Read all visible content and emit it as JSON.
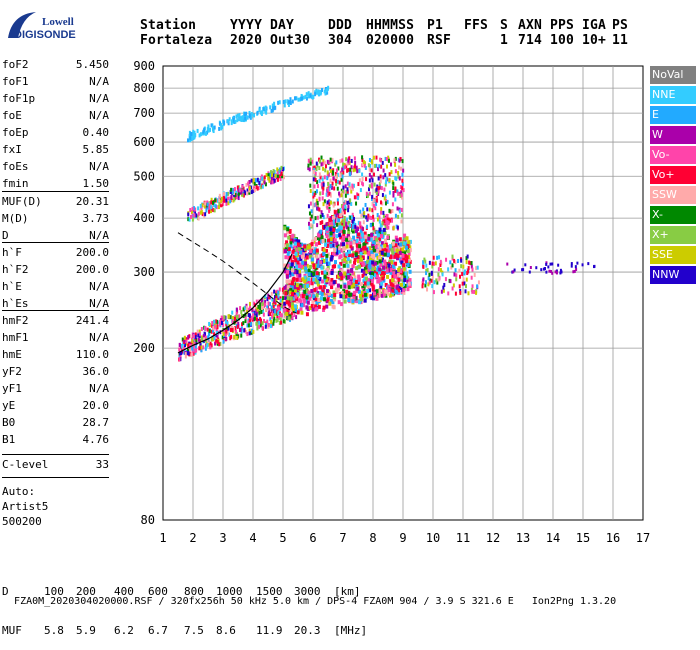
{
  "logo": {
    "line1": "Lowell",
    "line2": "DIGISONDE"
  },
  "header": {
    "labels": [
      "Station",
      "YYYY",
      "DAY",
      "DDD",
      "HHMMSS",
      "P1",
      "FFS",
      "S",
      "AXN",
      "PPS",
      "IGA",
      "PS"
    ],
    "values": [
      "Fortaleza",
      "2020",
      "Out30",
      "304",
      "020000",
      "RSF",
      "",
      "1",
      "714",
      "100",
      "10+",
      "11"
    ]
  },
  "params": [
    {
      "name": "foF2",
      "value": "5.450"
    },
    {
      "name": "foF1",
      "value": "N/A"
    },
    {
      "name": "foF1p",
      "value": "N/A"
    },
    {
      "name": "foE",
      "value": "N/A"
    },
    {
      "name": "foEp",
      "value": "0.40"
    },
    {
      "name": "fxI",
      "value": "5.85"
    },
    {
      "name": "foEs",
      "value": "N/A"
    },
    {
      "name": "fmin",
      "value": "1.50"
    },
    {
      "name": "MUF(D)",
      "value": "20.31"
    },
    {
      "name": "M(D)",
      "value": "3.73"
    },
    {
      "name": "D",
      "value": "N/A"
    },
    {
      "name": "h`F",
      "value": "200.0"
    },
    {
      "name": "h`F2",
      "value": "200.0"
    },
    {
      "name": "h`E",
      "value": "N/A"
    },
    {
      "name": "h`Es",
      "value": "N/A"
    },
    {
      "name": "hmF2",
      "value": "241.4"
    },
    {
      "name": "hmF1",
      "value": "N/A"
    },
    {
      "name": "hmE",
      "value": "110.0"
    },
    {
      "name": "yF2",
      "value": "36.0"
    },
    {
      "name": "yF1",
      "value": "N/A"
    },
    {
      "name": "yE",
      "value": "20.0"
    },
    {
      "name": "B0",
      "value": "28.7"
    },
    {
      "name": "B1",
      "value": "4.76"
    },
    {
      "name": "C-level",
      "value": "33"
    }
  ],
  "auto": {
    "line1": "Auto:",
    "line2": "Artist5",
    "line3": "500200"
  },
  "legend": [
    {
      "label": "NoVal",
      "color": "#808080"
    },
    {
      "label": "NNE",
      "color": "#33ccff"
    },
    {
      "label": "E",
      "color": "#22aaff"
    },
    {
      "label": "W",
      "color": "#aa00aa"
    },
    {
      "label": "Vo-",
      "color": "#ff44aa"
    },
    {
      "label": "Vo+",
      "color": "#ff0033"
    },
    {
      "label": "SSW",
      "color": "#ffaaaa"
    },
    {
      "label": "X-",
      "color": "#008800"
    },
    {
      "label": "X+",
      "color": "#88cc44"
    },
    {
      "label": "SSE",
      "color": "#cccc00"
    },
    {
      "label": "NNW",
      "color": "#2200cc"
    }
  ],
  "footer": {
    "d_label": "D",
    "d_values": [
      "100",
      "200",
      "400",
      "600",
      "800",
      "1000",
      "1500",
      "3000",
      "[km]"
    ],
    "muf_label": "MUF",
    "muf_values": [
      "5.8",
      "5.9",
      "6.2",
      "6.7",
      "7.5",
      "8.6",
      "11.9",
      "20.3",
      "[MHz]"
    ],
    "info": "FZA0M_2020304020000.RSF / 320fx256h 50 kHz 5.0 km / DPS-4 FZA0M 904 / 3.9 S 321.6 E",
    "software": "Ion2Png 1.3.20"
  },
  "chart_data": {
    "type": "scatter",
    "xlim": [
      1,
      17
    ],
    "ylim": [
      80,
      900
    ],
    "y_scale": "log",
    "x_ticks": [
      1,
      2,
      3,
      4,
      5,
      6,
      7,
      8,
      9,
      10,
      11,
      12,
      13,
      14,
      15,
      16,
      17
    ],
    "y_ticks": [
      80,
      200,
      300,
      400,
      500,
      600,
      700,
      800,
      900
    ],
    "grid": true,
    "legend_position": "right",
    "trace_curve": {
      "x": [
        1.5,
        2.0,
        2.5,
        3.0,
        3.5,
        4.0,
        4.5,
        5.0,
        5.3
      ],
      "y": [
        195,
        203,
        210,
        220,
        232,
        248,
        270,
        300,
        330
      ]
    },
    "dashed_curve": {
      "x": [
        1.5,
        2.0,
        2.5,
        3.0,
        3.5,
        4.0,
        4.5,
        5.0,
        5.45
      ],
      "y": [
        370,
        352,
        335,
        318,
        300,
        283,
        266,
        250,
        241
      ]
    },
    "clusters": [
      {
        "name": "F-trace",
        "color_index": 5,
        "x": [
          1.5,
          5.5
        ],
        "y": [
          195,
          260
        ]
      },
      {
        "name": "F-spread-lower",
        "color_index": 5,
        "x": [
          5.0,
          9.2
        ],
        "y": [
          230,
          370
        ]
      },
      {
        "name": "F-spread-upper",
        "color_index": 4,
        "x": [
          5.8,
          9.0
        ],
        "y": [
          380,
          560
        ]
      },
      {
        "name": "second-hop",
        "color_index": 9,
        "x": [
          1.8,
          5.0
        ],
        "y": [
          380,
          540
        ]
      },
      {
        "name": "high-echo",
        "color_index": 1,
        "x": [
          1.8,
          6.5
        ],
        "y": [
          600,
          800
        ]
      },
      {
        "name": "tail",
        "color_index": 6,
        "x": [
          9.6,
          11.5
        ],
        "y": [
          270,
          330
        ]
      },
      {
        "name": "nnw-line",
        "color_index": 10,
        "x": [
          12.4,
          15.4
        ],
        "y": [
          295,
          320
        ]
      }
    ]
  }
}
